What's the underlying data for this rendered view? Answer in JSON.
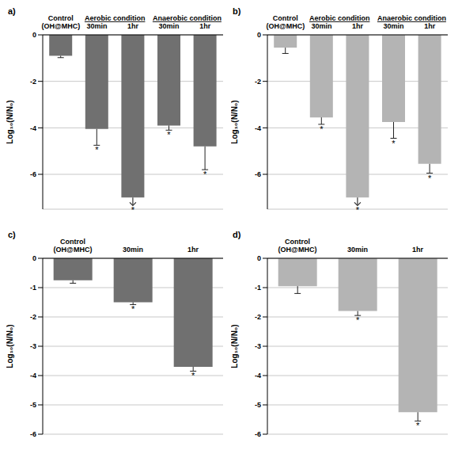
{
  "chart_data": [
    {
      "type": "bar",
      "title": "a)",
      "ylabel": "Log₁₀(N/N₀)",
      "categories": [
        "Control (OH@MHC)",
        "30min",
        "1hr",
        "30min",
        "1hr"
      ],
      "groups": [
        {
          "label": "Aerobic condition",
          "members": [
            1,
            2
          ]
        },
        {
          "label": "Anaerobic condition",
          "members": [
            3,
            4
          ]
        }
      ],
      "values": [
        -0.9,
        -4.05,
        -7.0,
        -3.9,
        -4.8
      ],
      "errors": [
        0.08,
        0.7,
        0,
        0.2,
        1.0
      ],
      "significance": [
        null,
        "*",
        "*",
        "*",
        "*"
      ],
      "arrows": [
        false,
        false,
        true,
        false,
        false
      ],
      "color": "#707070",
      "ylim": [
        -7.5,
        0
      ],
      "yticks": [
        0,
        -2,
        -4,
        -6
      ],
      "grid": true
    },
    {
      "type": "bar",
      "title": "b)",
      "ylabel": "Log₁₀(N/N₀)",
      "categories": [
        "Control (OH@MHC)",
        "30min",
        "1hr",
        "30min",
        "1hr"
      ],
      "groups": [
        {
          "label": "Aerobic condition",
          "members": [
            1,
            2
          ]
        },
        {
          "label": "Anaerobic condition",
          "members": [
            3,
            4
          ]
        }
      ],
      "values": [
        -0.55,
        -3.55,
        -7.0,
        -3.75,
        -5.55
      ],
      "errors": [
        0.25,
        0.3,
        0,
        0.7,
        0.4
      ],
      "significance": [
        null,
        "*",
        "*",
        "*",
        "*"
      ],
      "arrows": [
        false,
        false,
        true,
        false,
        false
      ],
      "color": "#b4b4b4",
      "ylim": [
        -7.5,
        0
      ],
      "yticks": [
        0,
        -2,
        -4,
        -6
      ],
      "grid": true
    },
    {
      "type": "bar",
      "title": "c)",
      "ylabel": "Log₁₀(N/N₀)",
      "categories": [
        "Control (OH@MHC)",
        "30min",
        "1hr"
      ],
      "values": [
        -0.75,
        -1.5,
        -3.7
      ],
      "errors": [
        0.1,
        0.08,
        0.15
      ],
      "significance": [
        null,
        "*",
        "*"
      ],
      "arrows": [
        false,
        false,
        false
      ],
      "color": "#707070",
      "ylim": [
        -6,
        0
      ],
      "yticks": [
        0,
        -1,
        -2,
        -3,
        -4,
        -5,
        -6
      ],
      "grid": true
    },
    {
      "type": "bar",
      "title": "d)",
      "ylabel": "Log₁₀(N/N₀)",
      "categories": [
        "Control (OH@MHC)",
        "30min",
        "1hr"
      ],
      "values": [
        -0.95,
        -1.8,
        -5.25
      ],
      "errors": [
        0.25,
        0.15,
        0.3
      ],
      "significance": [
        null,
        "*",
        "*"
      ],
      "arrows": [
        false,
        false,
        false
      ],
      "color": "#b4b4b4",
      "ylim": [
        -6,
        0
      ],
      "yticks": [
        0,
        -1,
        -2,
        -3,
        -4,
        -5,
        -6
      ],
      "grid": true
    }
  ]
}
